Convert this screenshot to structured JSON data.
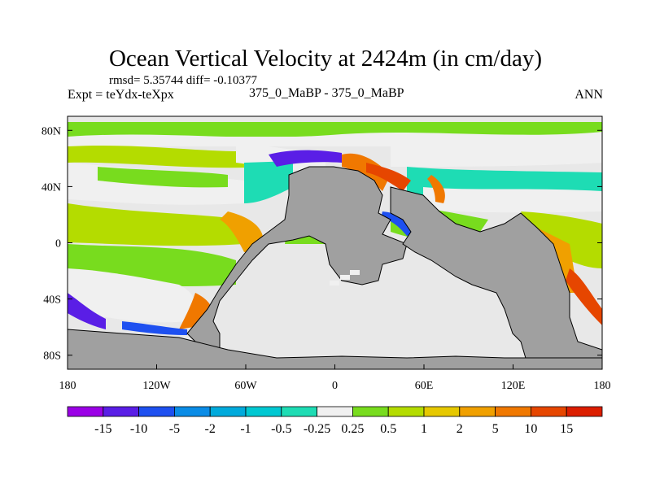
{
  "title": "Ocean Vertical Velocity at 2424m (in cm/day)",
  "stats": "rmsd= 5.35744  diff= -0.10377",
  "expt": "Expt = teYdx-teXpx",
  "runs": "375_0_MaBP - 375_0_MaBP",
  "season": "ANN",
  "map": {
    "lon_range": [
      -180,
      180
    ],
    "lat_range": [
      -90,
      90
    ],
    "x_ticks": [
      {
        "value": -180,
        "label": "180"
      },
      {
        "value": -120,
        "label": "120W"
      },
      {
        "value": -60,
        "label": "60W"
      },
      {
        "value": 0,
        "label": "0"
      },
      {
        "value": 60,
        "label": "60E"
      },
      {
        "value": 120,
        "label": "120E"
      },
      {
        "value": 180,
        "label": "180"
      }
    ],
    "y_ticks": [
      {
        "value": 80,
        "label": "80N"
      },
      {
        "value": 40,
        "label": "40N"
      },
      {
        "value": 0,
        "label": "0"
      },
      {
        "value": -40,
        "label": "40S"
      },
      {
        "value": -80,
        "label": "80S"
      }
    ],
    "land_color": "#a0a0a0",
    "ocean_base_color": "#dcdcdc"
  },
  "colorbar": {
    "levels": [
      "-15",
      "-10",
      "-5",
      "-2",
      "-1",
      "-0.5",
      "-0.25",
      "0.25",
      "0.5",
      "1",
      "2",
      "5",
      "10",
      "15"
    ],
    "colors": [
      "#9b00e6",
      "#5a1ee6",
      "#1e50f0",
      "#0a8ce6",
      "#00aadc",
      "#00c8d2",
      "#1edcb4",
      "#f0f0f0",
      "#78dc1e",
      "#b4dc00",
      "#e6c800",
      "#f0a000",
      "#f07800",
      "#e64600",
      "#dc1e00"
    ]
  }
}
